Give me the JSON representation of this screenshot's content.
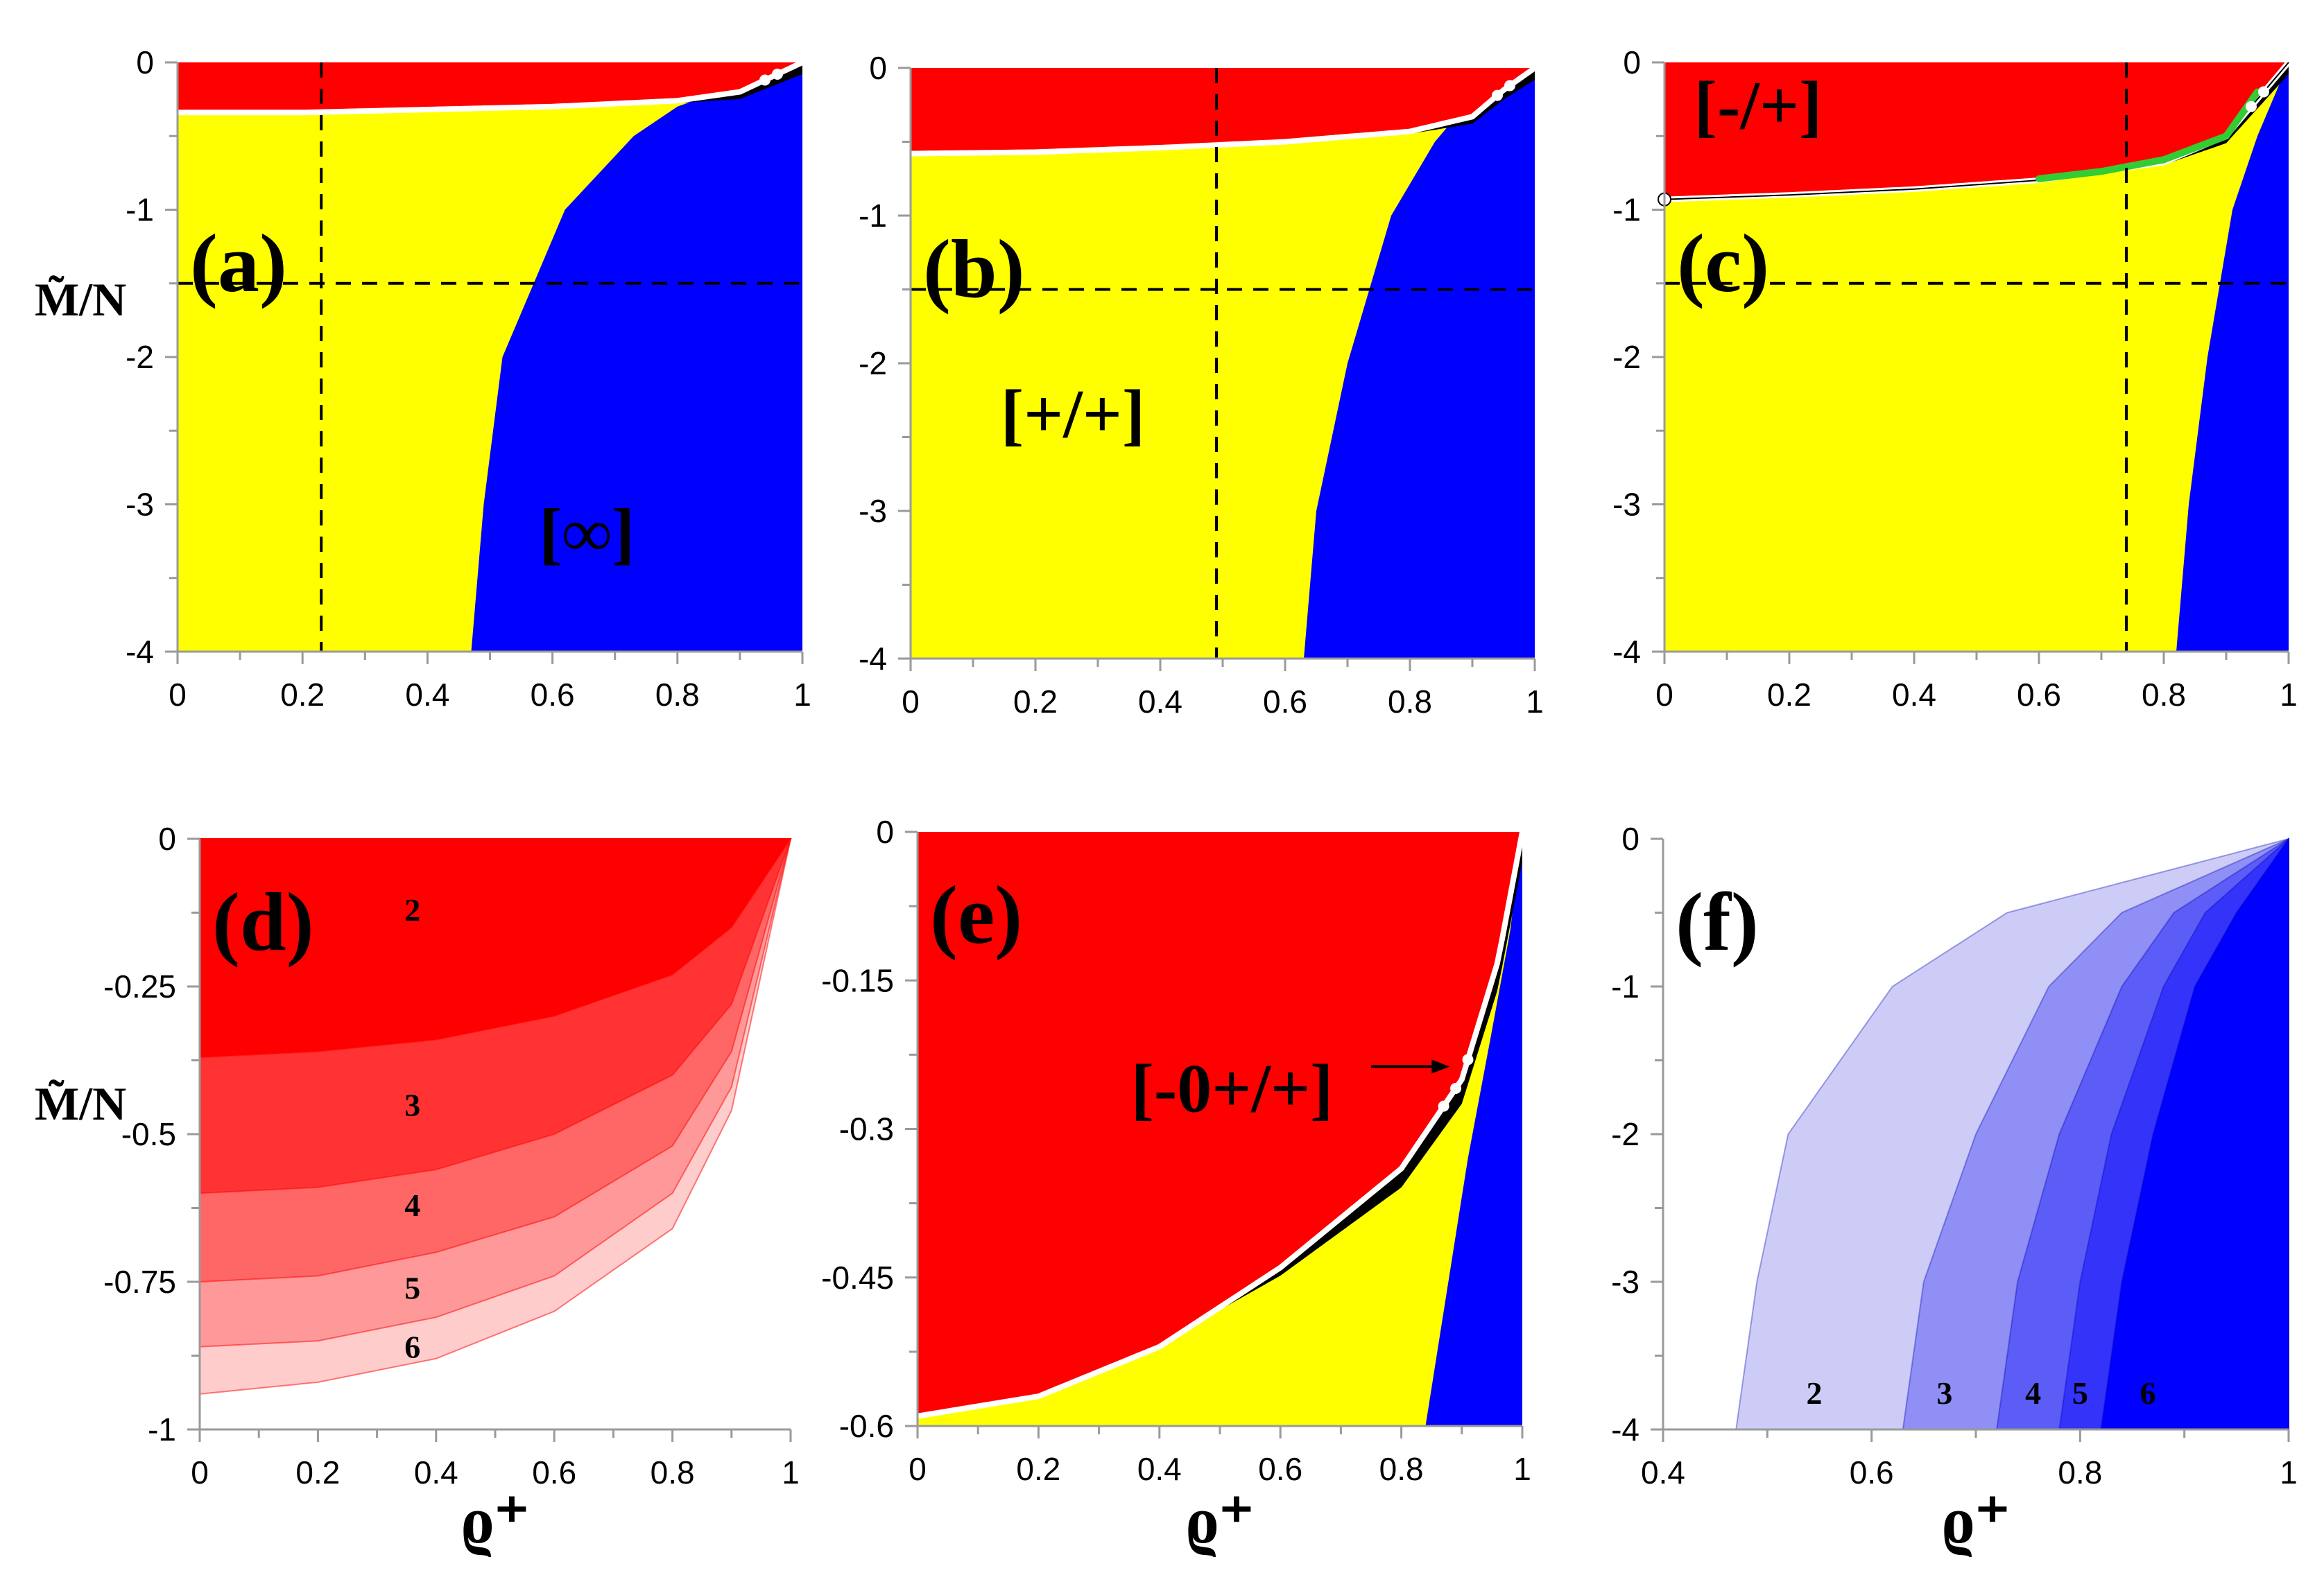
{
  "colors": {
    "red": "#ff0000",
    "yellow": "#ffff00",
    "blue": "#0000ff",
    "black": "#000000",
    "white": "#ffffff",
    "green": "#33cc33",
    "red_shades": [
      "#ff0000",
      "#ff3333",
      "#ff6666",
      "#ff9999",
      "#ffcccc"
    ],
    "blue_shades": [
      "#ccccf7",
      "#8f8ff5",
      "#5c5cf7",
      "#3333fa",
      "#0000ff"
    ]
  },
  "chart_data": [
    {
      "panel": "(a)",
      "type": "area",
      "xlabel": "",
      "ylabel": "M̃/N",
      "xlim": [
        0,
        1
      ],
      "ylim": [
        -4,
        0
      ],
      "x_ticks": [
        "0",
        "0.2",
        "0.4",
        "0.6",
        "0.8",
        "1"
      ],
      "y_ticks": [
        "0",
        "-1",
        "-2",
        "-3",
        "-4"
      ],
      "ref_lines": {
        "x": 0.23,
        "y": -1.5
      },
      "region_labels": [
        "[∞]"
      ],
      "red_boundary": {
        "x": [
          0,
          0.2,
          0.4,
          0.6,
          0.8,
          0.9,
          0.95,
          1
        ],
        "y": [
          -0.34,
          -0.34,
          -0.32,
          -0.3,
          -0.26,
          -0.2,
          -0.1,
          0
        ]
      },
      "blue_boundary": {
        "y": [
          -4,
          -3,
          -2,
          -1,
          -0.5,
          -0.3,
          0
        ],
        "x": [
          0.47,
          0.49,
          0.52,
          0.62,
          0.73,
          0.8,
          1
        ]
      }
    },
    {
      "panel": "(b)",
      "type": "area",
      "xlabel": "",
      "ylabel": "",
      "xlim": [
        0,
        1
      ],
      "ylim": [
        -4,
        0
      ],
      "x_ticks": [
        "0",
        "0.2",
        "0.4",
        "0.6",
        "0.8",
        "1"
      ],
      "y_ticks": [
        "0",
        "-1",
        "-2",
        "-3",
        "-4"
      ],
      "ref_lines": {
        "x": 0.49,
        "y": -1.5
      },
      "region_labels": [
        "[+/+]"
      ],
      "red_boundary": {
        "x": [
          0,
          0.2,
          0.4,
          0.6,
          0.8,
          0.9,
          0.95,
          1
        ],
        "y": [
          -0.58,
          -0.57,
          -0.54,
          -0.5,
          -0.43,
          -0.33,
          -0.15,
          0
        ]
      },
      "blue_boundary": {
        "y": [
          -4,
          -3,
          -2,
          -1,
          -0.5,
          -0.3,
          0
        ],
        "x": [
          0.63,
          0.65,
          0.7,
          0.77,
          0.84,
          0.88,
          1
        ]
      }
    },
    {
      "panel": "(c)",
      "type": "area",
      "xlabel": "",
      "ylabel": "",
      "xlim": [
        0,
        1
      ],
      "ylim": [
        -4,
        0
      ],
      "x_ticks": [
        "0",
        "0.2",
        "0.4",
        "0.6",
        "0.8",
        "1"
      ],
      "y_ticks": [
        "0",
        "-1",
        "-2",
        "-3",
        "-4"
      ],
      "ref_lines": {
        "x": 0.74,
        "y": -1.5
      },
      "region_labels": [
        "[-/+]"
      ],
      "red_boundary": {
        "x": [
          0,
          0.2,
          0.4,
          0.6,
          0.8,
          0.9,
          0.95,
          1
        ],
        "y": [
          -0.93,
          -0.9,
          -0.86,
          -0.8,
          -0.68,
          -0.5,
          -0.25,
          0
        ]
      },
      "blue_boundary": {
        "y": [
          -4,
          -3,
          -2,
          -1,
          -0.5,
          -0.2,
          0
        ],
        "x": [
          0.82,
          0.84,
          0.87,
          0.91,
          0.95,
          0.98,
          1
        ]
      },
      "green_segment": {
        "x": [
          0.6,
          0.7,
          0.8,
          0.9,
          0.95
        ],
        "y": [
          -0.79,
          -0.74,
          -0.66,
          -0.5,
          -0.2
        ]
      }
    },
    {
      "panel": "(d)",
      "type": "area",
      "xlabel": "ϱ⁺",
      "ylabel": "M̃/N",
      "xlim": [
        0,
        1
      ],
      "ylim": [
        -1,
        0
      ],
      "x_ticks": [
        "0",
        "0.2",
        "0.4",
        "0.6",
        "0.8",
        "1"
      ],
      "y_ticks": [
        "0",
        "-0.25",
        "-0.5",
        "-0.75",
        "-1"
      ],
      "series": [
        {
          "name": "2",
          "x": [
            0,
            0.2,
            0.4,
            0.6,
            0.8,
            0.9,
            1
          ],
          "y": [
            -0.37,
            -0.36,
            -0.34,
            -0.3,
            -0.23,
            -0.15,
            0
          ]
        },
        {
          "name": "3",
          "x": [
            0,
            0.2,
            0.4,
            0.6,
            0.8,
            0.9,
            1
          ],
          "y": [
            -0.6,
            -0.59,
            -0.56,
            -0.5,
            -0.4,
            -0.28,
            0
          ]
        },
        {
          "name": "4",
          "x": [
            0,
            0.2,
            0.4,
            0.6,
            0.8,
            0.9,
            1
          ],
          "y": [
            -0.75,
            -0.74,
            -0.7,
            -0.64,
            -0.52,
            -0.36,
            0
          ]
        },
        {
          "name": "5",
          "x": [
            0,
            0.2,
            0.4,
            0.6,
            0.8,
            0.9,
            1
          ],
          "y": [
            -0.86,
            -0.85,
            -0.81,
            -0.74,
            -0.6,
            -0.42,
            0
          ]
        },
        {
          "name": "6",
          "x": [
            0,
            0.2,
            0.4,
            0.6,
            0.8,
            0.9,
            1
          ],
          "y": [
            -0.94,
            -0.92,
            -0.88,
            -0.8,
            -0.66,
            -0.46,
            0
          ]
        }
      ]
    },
    {
      "panel": "(e)",
      "type": "area",
      "xlabel": "ϱ⁺",
      "ylabel": "",
      "xlim": [
        0,
        1
      ],
      "ylim": [
        -0.6,
        0
      ],
      "x_ticks": [
        "0",
        "0.2",
        "0.4",
        "0.6",
        "0.8",
        "1"
      ],
      "y_ticks": [
        "0",
        "-0.15",
        "-0.3",
        "-0.45",
        "-0.6"
      ],
      "region_labels": [
        "[-0+/+]"
      ],
      "red_boundary": {
        "x": [
          0,
          0.2,
          0.4,
          0.6,
          0.8,
          0.9,
          0.96,
          1
        ],
        "y": [
          -0.59,
          -0.57,
          -0.52,
          -0.44,
          -0.34,
          -0.25,
          -0.13,
          0
        ]
      },
      "blue_boundary": {
        "y": [
          -0.6,
          -0.33,
          -0.2,
          -0.1,
          0
        ],
        "x": [
          0.84,
          0.91,
          0.95,
          0.98,
          1
        ]
      }
    },
    {
      "panel": "(f)",
      "type": "area",
      "xlabel": "ϱ⁺",
      "ylabel": "",
      "xlim": [
        0.4,
        1
      ],
      "ylim": [
        -4,
        0
      ],
      "x_ticks": [
        "0.4",
        "0.6",
        "0.8",
        "1"
      ],
      "y_ticks": [
        "0",
        "-1",
        "-2",
        "-3",
        "-4"
      ],
      "series": [
        {
          "name": "2",
          "y": [
            -4,
            -3,
            -2,
            -1,
            -0.5,
            0
          ],
          "x": [
            0.47,
            0.49,
            0.52,
            0.62,
            0.73,
            1
          ]
        },
        {
          "name": "3",
          "y": [
            -4,
            -3,
            -2,
            -1,
            -0.5,
            0
          ],
          "x": [
            0.63,
            0.65,
            0.7,
            0.77,
            0.84,
            1
          ]
        },
        {
          "name": "4",
          "y": [
            -4,
            -3,
            -2,
            -1,
            -0.5,
            0
          ],
          "x": [
            0.72,
            0.74,
            0.78,
            0.84,
            0.89,
            1
          ]
        },
        {
          "name": "5",
          "y": [
            -4,
            -3,
            -2,
            -1,
            -0.5,
            0
          ],
          "x": [
            0.78,
            0.8,
            0.83,
            0.88,
            0.92,
            1
          ]
        },
        {
          "name": "6",
          "y": [
            -4,
            -3,
            -2,
            -1,
            -0.5,
            0
          ],
          "x": [
            0.82,
            0.84,
            0.87,
            0.91,
            0.95,
            1
          ]
        }
      ]
    }
  ]
}
